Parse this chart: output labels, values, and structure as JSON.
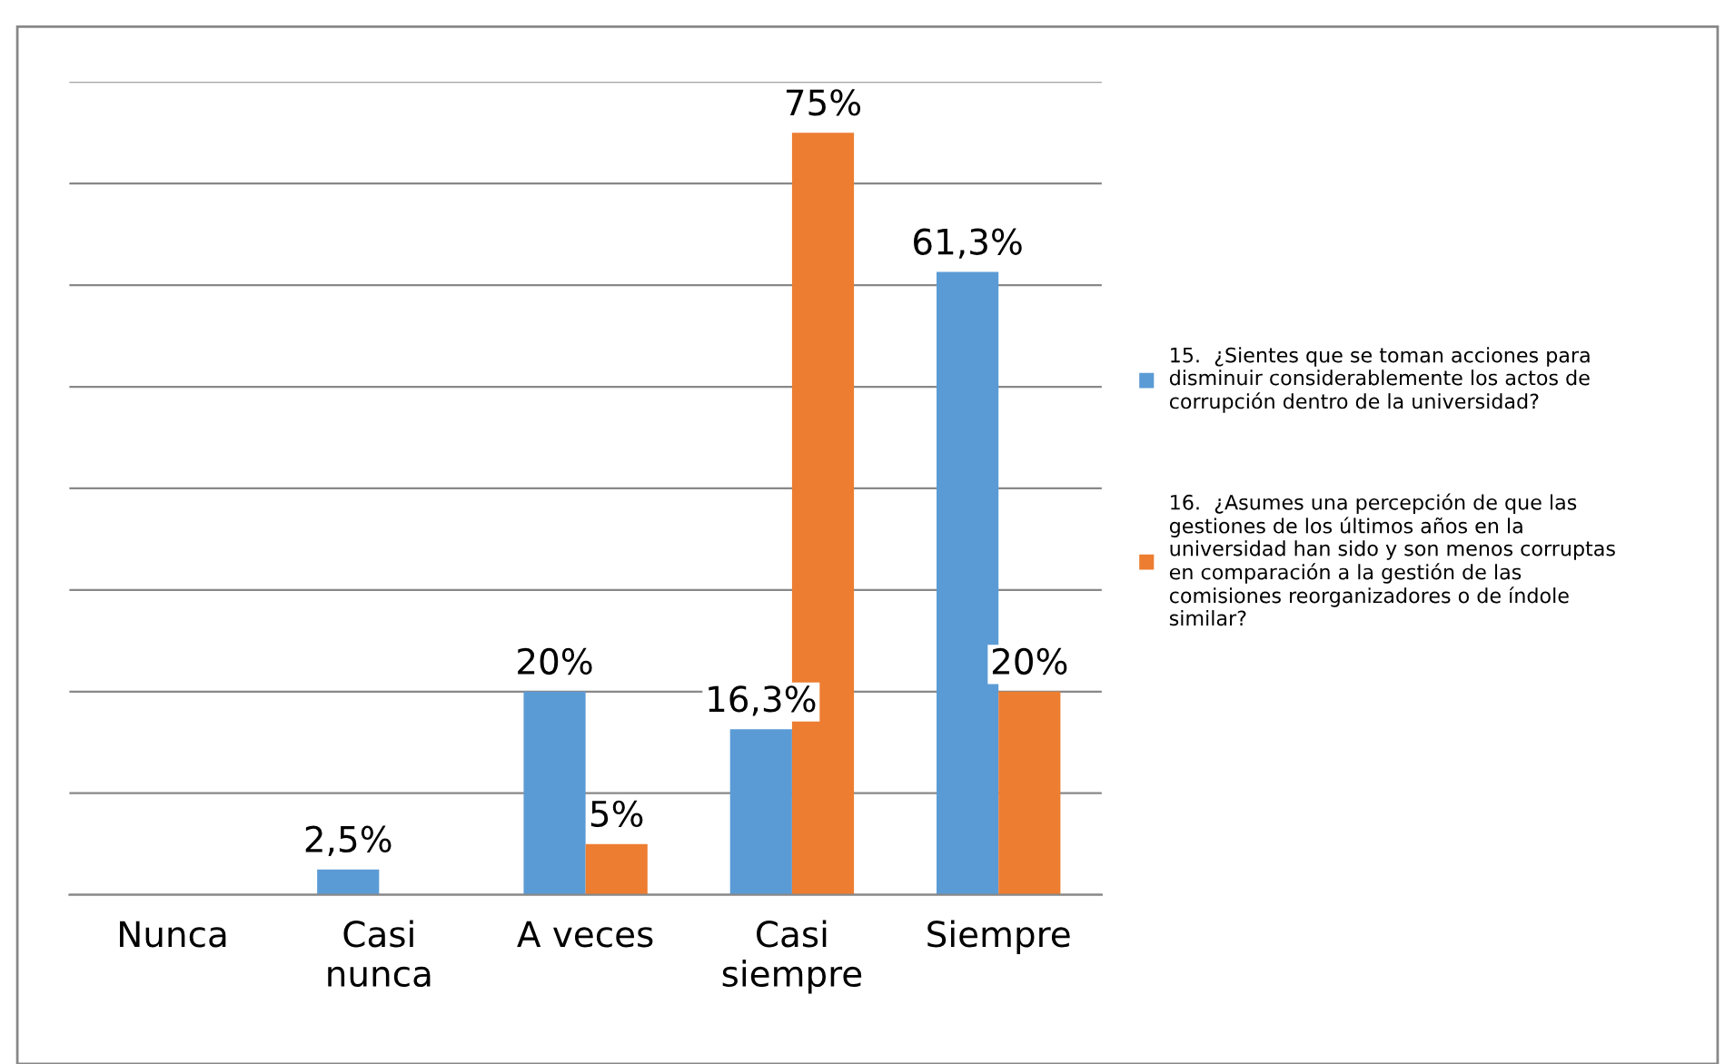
{
  "chart_data": {
    "type": "bar",
    "categories": [
      "Nunca",
      "Casi\nnunca",
      "A veces",
      "Casi\nsiempre",
      "Siempre"
    ],
    "series": [
      {
        "name": "15.  ¿Sientes que se toman acciones para disminuir considerablemente los actos de corrupción dentro de la universidad?",
        "color": "#5b9bd5",
        "values": [
          null,
          2.5,
          20,
          16.3,
          61.3
        ],
        "value_labels": [
          null,
          "2,5%",
          "20%",
          "16,3%",
          "61,3%"
        ]
      },
      {
        "name": "16.  ¿Asumes una percepción de que las gestiones de los últimos años en la universidad han sido y son menos corruptas en comparación a la gestión de las comisiones reorganizadores o de índole similar?",
        "color": "#ed7d31",
        "values": [
          null,
          null,
          5,
          75,
          20
        ],
        "value_labels": [
          null,
          null,
          "5%",
          "75%",
          "20%"
        ]
      }
    ],
    "ylim": [
      0,
      80
    ],
    "yticks": [
      {
        "value": 0,
        "label": null
      },
      {
        "value": 10,
        "label": null
      },
      {
        "value": 20,
        "label": null
      },
      {
        "value": 30,
        "label": null
      },
      {
        "value": 40,
        "label": null
      },
      {
        "value": 50,
        "label": null
      },
      {
        "value": 60,
        "label": null
      },
      {
        "value": 70,
        "label": null
      },
      {
        "value": 80,
        "label": null
      }
    ],
    "tick_labels": "x",
    "grid": "y",
    "legend": "right"
  }
}
